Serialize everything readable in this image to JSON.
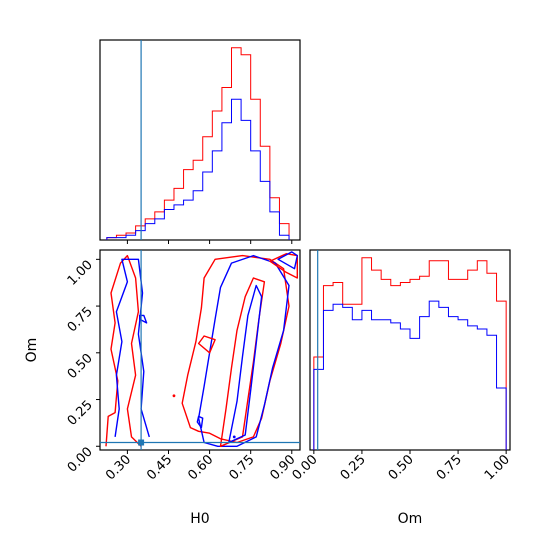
{
  "chart_data": {
    "type": "corner",
    "parameters": [
      "H0",
      "Om"
    ],
    "truth": {
      "H0": 0.35,
      "Om": 0.02
    },
    "truth_color": "#1f77b4",
    "series": [
      {
        "color": "#ff0000"
      },
      {
        "color": "#0000ff"
      }
    ],
    "panels": {
      "hist_H0": {
        "xlim": [
          0.2,
          0.93
        ],
        "bin_edges": [
          0.225,
          0.26,
          0.295,
          0.33,
          0.365,
          0.4,
          0.435,
          0.47,
          0.505,
          0.54,
          0.575,
          0.61,
          0.645,
          0.68,
          0.715,
          0.75,
          0.785,
          0.82,
          0.855,
          0.89
        ],
        "counts": [
          [
            1,
            2,
            3,
            6,
            9,
            12,
            17,
            22,
            30,
            34,
            44,
            55,
            65,
            82,
            79,
            60,
            40,
            18,
            7
          ],
          [
            1,
            1,
            2,
            4,
            7,
            9,
            13,
            15,
            17,
            21,
            29,
            38,
            50,
            60,
            51,
            38,
            25,
            12,
            2
          ]
        ]
      },
      "hist_Om": {
        "xlim": [
          -0.02,
          1.02
        ],
        "bin_edges": [
          0,
          0.05,
          0.1,
          0.15,
          0.2,
          0.25,
          0.3,
          0.35,
          0.4,
          0.45,
          0.5,
          0.55,
          0.6,
          0.65,
          0.7,
          0.75,
          0.8,
          0.85,
          0.9,
          0.95,
          1.0
        ],
        "counts": [
          [
            30,
            53,
            54,
            47,
            47,
            62,
            58,
            55,
            53,
            54,
            55,
            56,
            61,
            61,
            55,
            55,
            58,
            61,
            57,
            48
          ],
          [
            26,
            45,
            47,
            46,
            42,
            45,
            42,
            42,
            41,
            39,
            36,
            43,
            48,
            46,
            43,
            42,
            40,
            39,
            37,
            20
          ]
        ]
      },
      "contour": {
        "xlim": [
          0.2,
          0.93
        ],
        "ylim": [
          -0.02,
          1.05
        ],
        "levels": [
          {
            "series": 0,
            "points": [
              [
                0.222,
                0.0
              ],
              [
                0.23,
                0.16
              ],
              [
                0.255,
                0.18
              ],
              [
                0.265,
                0.35
              ],
              [
                0.24,
                0.52
              ],
              [
                0.255,
                0.66
              ],
              [
                0.24,
                0.82
              ],
              [
                0.275,
                0.98
              ],
              [
                0.3,
                1.02
              ],
              [
                0.33,
                0.9
              ],
              [
                0.34,
                0.72
              ],
              [
                0.315,
                0.55
              ],
              [
                0.33,
                0.38
              ],
              [
                0.3,
                0.2
              ],
              [
                0.315,
                0.05
              ],
              [
                0.35,
                0.0
              ]
            ],
            "closed": false
          },
          {
            "series": 0,
            "points": [
              [
                0.53,
                0.1
              ],
              [
                0.5,
                0.23
              ],
              [
                0.52,
                0.38
              ],
              [
                0.55,
                0.56
              ],
              [
                0.57,
                0.74
              ],
              [
                0.58,
                0.9
              ],
              [
                0.62,
                1.0
              ],
              [
                0.72,
                1.02
              ],
              [
                0.82,
                1.0
              ],
              [
                0.87,
                0.95
              ],
              [
                0.89,
                0.75
              ],
              [
                0.86,
                0.55
              ],
              [
                0.82,
                0.35
              ],
              [
                0.79,
                0.15
              ],
              [
                0.76,
                0.05
              ],
              [
                0.7,
                0.02
              ],
              [
                0.64,
                0.04
              ],
              [
                0.6,
                0.07
              ],
              [
                0.56,
                0.08
              ]
            ],
            "closed": true
          },
          {
            "series": 1,
            "points": [
              [
                0.255,
                0.05
              ],
              [
                0.27,
                0.2
              ],
              [
                0.26,
                0.38
              ],
              [
                0.28,
                0.56
              ],
              [
                0.26,
                0.72
              ],
              [
                0.3,
                0.88
              ],
              [
                0.28,
                1.0
              ],
              [
                0.34,
                1.0
              ],
              [
                0.355,
                0.82
              ],
              [
                0.34,
                0.6
              ],
              [
                0.36,
                0.4
              ],
              [
                0.35,
                0.2
              ],
              [
                0.38,
                0.05
              ]
            ],
            "closed": false
          },
          {
            "series": 1,
            "points": [
              [
                0.58,
                0.02
              ],
              [
                0.56,
                0.15
              ],
              [
                0.58,
                0.32
              ],
              [
                0.6,
                0.5
              ],
              [
                0.62,
                0.68
              ],
              [
                0.64,
                0.85
              ],
              [
                0.68,
                0.98
              ],
              [
                0.76,
                1.02
              ],
              [
                0.84,
                0.98
              ],
              [
                0.89,
                0.86
              ],
              [
                0.87,
                0.62
              ],
              [
                0.83,
                0.42
              ],
              [
                0.8,
                0.22
              ],
              [
                0.77,
                0.05
              ],
              [
                0.7,
                0.0
              ],
              [
                0.63,
                0.0
              ]
            ],
            "closed": true
          },
          {
            "series": 0,
            "points": [
              [
                0.64,
                0.0
              ],
              [
                0.66,
                0.2
              ],
              [
                0.68,
                0.42
              ],
              [
                0.7,
                0.62
              ],
              [
                0.73,
                0.8
              ],
              [
                0.76,
                0.9
              ],
              [
                0.8,
                0.88
              ],
              [
                0.78,
                0.68
              ],
              [
                0.76,
                0.45
              ],
              [
                0.74,
                0.25
              ],
              [
                0.72,
                0.05
              ]
            ],
            "closed": true
          },
          {
            "series": 1,
            "points": [
              [
                0.67,
                0.02
              ],
              [
                0.7,
                0.24
              ],
              [
                0.72,
                0.48
              ],
              [
                0.74,
                0.7
              ],
              [
                0.77,
                0.86
              ],
              [
                0.79,
                0.8
              ],
              [
                0.77,
                0.55
              ],
              [
                0.75,
                0.3
              ],
              [
                0.73,
                0.06
              ]
            ],
            "closed": true
          },
          {
            "series": 1,
            "points": [
              [
                0.345,
                0.68
              ],
              [
                0.37,
                0.66
              ],
              [
                0.36,
                0.7
              ],
              [
                0.345,
                0.7
              ]
            ],
            "closed": true
          },
          {
            "series": 1,
            "points": [
              [
                0.555,
                0.13
              ],
              [
                0.57,
                0.1
              ],
              [
                0.575,
                0.15
              ],
              [
                0.56,
                0.16
              ]
            ],
            "closed": true
          },
          {
            "series": 0,
            "points": [
              [
                0.56,
                0.55
              ],
              [
                0.6,
                0.5
              ],
              [
                0.62,
                0.57
              ],
              [
                0.58,
                0.59
              ]
            ],
            "closed": true
          },
          {
            "series": 0,
            "points": [
              [
                0.82,
                0.99
              ],
              [
                0.88,
                1.03
              ],
              [
                0.92,
                1.02
              ],
              [
                0.92,
                0.9
              ],
              [
                0.88,
                0.93
              ]
            ],
            "closed": true
          },
          {
            "series": 1,
            "points": [
              [
                0.85,
                1.0
              ],
              [
                0.9,
                1.04
              ],
              [
                0.92,
                1.02
              ],
              [
                0.91,
                0.95
              ]
            ],
            "closed": true
          }
        ],
        "dots": [
          {
            "series": 0,
            "x": 0.47,
            "y": 0.27
          },
          {
            "series": 1,
            "x": 0.35,
            "y": 0.02
          },
          {
            "series": 1,
            "x": 0.69,
            "y": 0.05
          }
        ]
      }
    },
    "axes": {
      "H0": {
        "label": "H0",
        "ticks": [
          0.3,
          0.45,
          0.6,
          0.75,
          0.9
        ],
        "tick_labels": [
          "0.30",
          "0.45",
          "0.60",
          "0.75",
          "0.90"
        ]
      },
      "Om": {
        "label": "Om",
        "ticks": [
          0.0,
          0.25,
          0.5,
          0.75,
          1.0
        ],
        "tick_labels": [
          "0.00",
          "0.25",
          "0.50",
          "0.75",
          "1.00"
        ]
      }
    }
  }
}
